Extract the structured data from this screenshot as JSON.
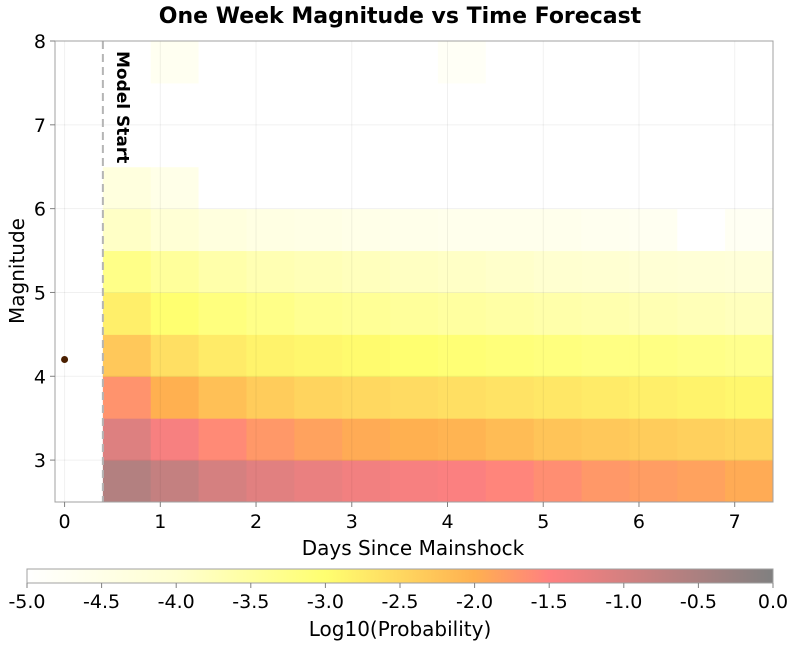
{
  "chart_data": {
    "type": "heatmap",
    "title": "One Week Magnitude vs Time Forecast",
    "xlabel": "Days Since Mainshock",
    "ylabel": "Magnitude",
    "xlim": [
      -0.1,
      7.4
    ],
    "ylim": [
      2.5,
      8.0
    ],
    "xticks": [
      "0",
      "1",
      "2",
      "3",
      "4",
      "5",
      "6",
      "7"
    ],
    "xtick_values": [
      0,
      1,
      2,
      3,
      4,
      5,
      6,
      7
    ],
    "yticks": [
      "3",
      "4",
      "5",
      "6",
      "7",
      "8"
    ],
    "ytick_values": [
      3,
      4,
      5,
      6,
      7,
      8
    ],
    "grid": true,
    "time_bin_edges": [
      0.4,
      0.9,
      1.4,
      1.9,
      2.4,
      2.9,
      3.4,
      3.9,
      4.4,
      4.9,
      5.4,
      5.9,
      6.4,
      6.9,
      7.4
    ],
    "magnitude_bin_edges": [
      2.5,
      3.0,
      3.5,
      4.0,
      4.5,
      5.0,
      5.5,
      6.0,
      6.5,
      7.0,
      7.5,
      8.0
    ],
    "log10_probability_grid": [
      [
        -0.6,
        -0.8,
        -1.0,
        -1.15,
        -1.25,
        -1.35,
        -1.4,
        -1.45,
        -1.55,
        -1.65,
        -1.75,
        -1.8,
        -1.85,
        -1.95
      ],
      [
        -1.1,
        -1.4,
        -1.6,
        -1.75,
        -1.85,
        -1.95,
        -2.0,
        -2.05,
        -2.15,
        -2.25,
        -2.3,
        -2.35,
        -2.4,
        -2.45
      ],
      [
        -1.7,
        -2.0,
        -2.2,
        -2.35,
        -2.45,
        -2.5,
        -2.55,
        -2.6,
        -2.65,
        -2.7,
        -2.75,
        -2.8,
        -2.85,
        -2.9
      ],
      [
        -2.3,
        -2.6,
        -2.75,
        -2.85,
        -2.9,
        -2.95,
        -3.0,
        -3.05,
        -3.1,
        -3.15,
        -3.2,
        -3.2,
        -3.25,
        -3.3
      ],
      [
        -2.8,
        -3.0,
        -3.15,
        -3.25,
        -3.35,
        -3.4,
        -3.45,
        -3.5,
        -3.55,
        -3.6,
        -3.65,
        -3.7,
        -3.75,
        -3.8
      ],
      [
        -3.25,
        -3.45,
        -3.6,
        -3.7,
        -3.75,
        -3.8,
        -3.85,
        -3.9,
        -3.95,
        -4.0,
        -4.05,
        -4.1,
        -4.15,
        -4.2
      ],
      [
        -3.9,
        -4.1,
        -4.3,
        -4.4,
        -4.45,
        -4.5,
        -4.55,
        -4.6,
        -4.6,
        -4.6,
        -4.65,
        -4.7,
        -5.0,
        -4.75
      ],
      [
        -4.3,
        -4.5,
        -5.0,
        -5.0,
        -5.0,
        -5.0,
        -5.0,
        -5.0,
        -5.0,
        -5.0,
        -5.0,
        -5.0,
        -5.0,
        -5.0
      ],
      [
        -5.0,
        -5.0,
        -5.0,
        -5.0,
        -5.0,
        -5.0,
        -5.0,
        -5.0,
        -5.0,
        -5.0,
        -5.0,
        -5.0,
        -5.0,
        -5.0
      ],
      [
        -5.0,
        -5.0,
        -5.0,
        -5.0,
        -5.0,
        -5.0,
        -5.0,
        -5.0,
        -5.0,
        -5.0,
        -5.0,
        -5.0,
        -5.0,
        -5.0
      ],
      [
        -5.0,
        -4.7,
        -5.0,
        -5.0,
        -5.0,
        -5.0,
        -5.0,
        -4.8,
        -5.0,
        -5.0,
        -5.0,
        -5.0,
        -5.0,
        -5.0
      ]
    ],
    "mainshock": {
      "days": 0.0,
      "magnitude": 4.2,
      "color": "#4a1f00"
    },
    "model_start": {
      "days": 0.4,
      "label": "Model Start"
    },
    "colorbar": {
      "label": "Log10(Probability)",
      "min": -5.0,
      "max": 0.0,
      "ticks": [
        "-5.0",
        "-4.5",
        "-4.0",
        "-3.5",
        "-3.0",
        "-2.5",
        "-2.0",
        "-1.5",
        "-1.0",
        "-0.5",
        "0.0"
      ],
      "tick_values": [
        -5.0,
        -4.5,
        -4.0,
        -3.5,
        -3.0,
        -2.5,
        -2.0,
        -1.5,
        -1.0,
        -0.5,
        0.0
      ],
      "color_stops": [
        {
          "value": -5.0,
          "color": "#ffffff"
        },
        {
          "value": -4.0,
          "color": "#ffffd0"
        },
        {
          "value": -3.0,
          "color": "#ffff70"
        },
        {
          "value": -2.0,
          "color": "#ffb050"
        },
        {
          "value": -1.5,
          "color": "#ff8080"
        },
        {
          "value": 0.0,
          "color": "#808080"
        }
      ]
    }
  }
}
